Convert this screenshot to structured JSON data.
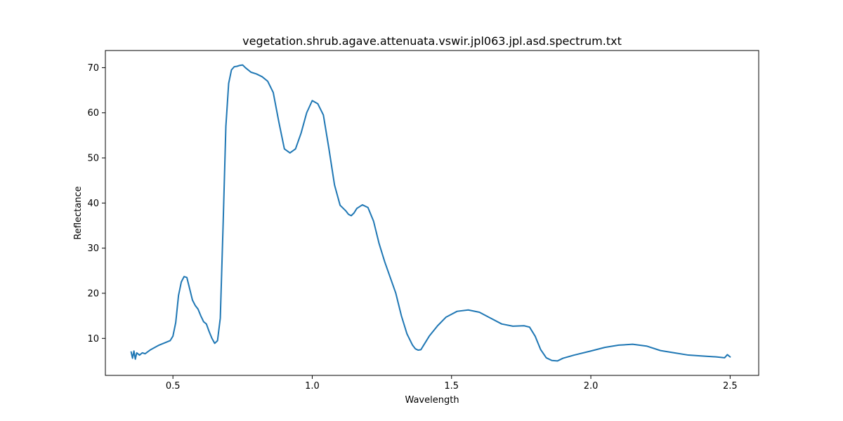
{
  "chart_data": {
    "type": "line",
    "title": "vegetation.shrub.agave.attenuata.vswir.jpl063.jpl.asd.spectrum.txt",
    "xlabel": "Wavelength",
    "ylabel": "Reflectance",
    "xlim": [
      0.2575,
      2.6025
    ],
    "ylim": [
      1.8,
      73.8
    ],
    "xticks": [
      0.5,
      1.0,
      1.5,
      2.0,
      2.5
    ],
    "xtick_labels": [
      "0.5",
      "1.0",
      "1.5",
      "2.0",
      "2.5"
    ],
    "yticks": [
      10,
      20,
      30,
      40,
      50,
      60,
      70
    ],
    "ytick_labels": [
      "10",
      "20",
      "30",
      "40",
      "50",
      "60",
      "70"
    ],
    "grid": false,
    "legend": "none",
    "series": [
      {
        "color": "#1f77b4",
        "x": [
          0.35,
          0.355,
          0.36,
          0.365,
          0.37,
          0.38,
          0.39,
          0.4,
          0.42,
          0.45,
          0.47,
          0.49,
          0.5,
          0.51,
          0.52,
          0.53,
          0.54,
          0.55,
          0.56,
          0.57,
          0.58,
          0.59,
          0.6,
          0.61,
          0.62,
          0.63,
          0.64,
          0.65,
          0.66,
          0.67,
          0.68,
          0.69,
          0.7,
          0.71,
          0.72,
          0.73,
          0.74,
          0.75,
          0.76,
          0.78,
          0.8,
          0.82,
          0.84,
          0.86,
          0.88,
          0.9,
          0.92,
          0.94,
          0.96,
          0.98,
          1.0,
          1.02,
          1.04,
          1.06,
          1.08,
          1.1,
          1.12,
          1.13,
          1.14,
          1.15,
          1.16,
          1.18,
          1.2,
          1.22,
          1.24,
          1.26,
          1.28,
          1.3,
          1.32,
          1.34,
          1.36,
          1.37,
          1.38,
          1.39,
          1.4,
          1.42,
          1.45,
          1.48,
          1.52,
          1.56,
          1.6,
          1.64,
          1.68,
          1.72,
          1.76,
          1.78,
          1.8,
          1.82,
          1.84,
          1.86,
          1.88,
          1.9,
          1.94,
          2.0,
          2.05,
          2.1,
          2.15,
          2.2,
          2.25,
          2.3,
          2.35,
          2.4,
          2.45,
          2.48,
          2.49,
          2.5
        ],
        "y": [
          7.0,
          5.6,
          7.2,
          5.4,
          6.8,
          6.3,
          6.8,
          6.6,
          7.5,
          8.5,
          9.0,
          9.5,
          10.5,
          13.5,
          19.5,
          22.5,
          23.7,
          23.5,
          21.0,
          18.5,
          17.3,
          16.5,
          15.0,
          13.7,
          13.2,
          11.5,
          10.0,
          8.9,
          9.5,
          14.5,
          35.0,
          57.0,
          66.5,
          69.5,
          70.2,
          70.3,
          70.5,
          70.6,
          70.0,
          69.0,
          68.6,
          68.0,
          67.0,
          64.5,
          58.0,
          52.0,
          51.1,
          52.0,
          55.5,
          60.0,
          62.7,
          62.0,
          59.5,
          52.0,
          44.0,
          39.5,
          38.3,
          37.5,
          37.2,
          37.8,
          38.8,
          39.6,
          39.0,
          36.0,
          31.0,
          27.0,
          23.5,
          20.0,
          15.0,
          11.0,
          8.5,
          7.7,
          7.4,
          7.5,
          8.5,
          10.5,
          12.8,
          14.7,
          16.0,
          16.3,
          15.8,
          14.5,
          13.2,
          12.7,
          12.8,
          12.5,
          10.5,
          7.5,
          5.7,
          5.1,
          5.0,
          5.6,
          6.3,
          7.2,
          8.0,
          8.5,
          8.7,
          8.3,
          7.3,
          6.8,
          6.3,
          6.1,
          5.9,
          5.7,
          6.4,
          5.9
        ]
      }
    ]
  }
}
